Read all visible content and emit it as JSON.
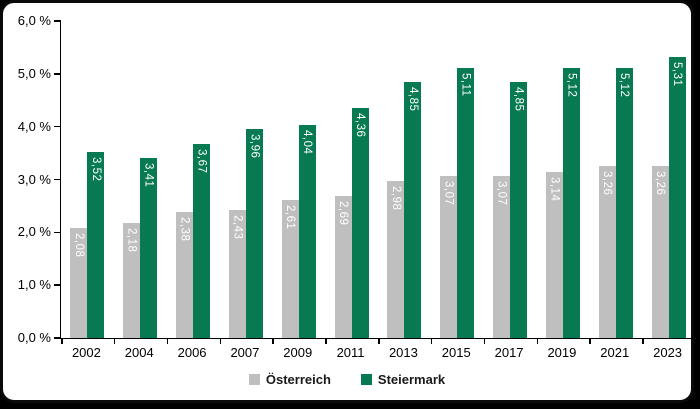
{
  "chart_data": {
    "type": "bar",
    "categories": [
      "2002",
      "2004",
      "2006",
      "2007",
      "2009",
      "2011",
      "2013",
      "2015",
      "2017",
      "2019",
      "2021",
      "2023"
    ],
    "series": [
      {
        "name": "Österreich",
        "color": "#bfbfbf",
        "values": [
          2.08,
          2.18,
          2.38,
          2.43,
          2.61,
          2.69,
          2.98,
          3.07,
          3.07,
          3.14,
          3.26,
          3.26
        ],
        "value_labels": [
          "2,08",
          "2,18",
          "2,38",
          "2,43",
          "2,61",
          "2,69",
          "2,98",
          "3,07",
          "3,07",
          "3,14",
          "3,26",
          "3,26"
        ]
      },
      {
        "name": "Steiermark",
        "color": "#077a51",
        "values": [
          3.52,
          3.41,
          3.67,
          3.96,
          4.04,
          4.36,
          4.85,
          5.11,
          4.85,
          5.12,
          5.12,
          5.31
        ],
        "value_labels": [
          "3,52",
          "3,41",
          "3,67",
          "3,96",
          "4,04",
          "4,36",
          "4,85",
          "5,11",
          "4,85",
          "5,12",
          "5,12",
          "5,31"
        ]
      }
    ],
    "title": "",
    "xlabel": "",
    "ylabel": "",
    "ylim": [
      0,
      6
    ],
    "ytick_labels": [
      "0,0 %",
      "1,0 %",
      "2,0 %",
      "3,0 %",
      "4,0 %",
      "5,0 %",
      "6,0 %"
    ],
    "grid": false,
    "legend_position": "bottom",
    "value_label_color": "#ffffff",
    "axis_color": "#000000"
  }
}
